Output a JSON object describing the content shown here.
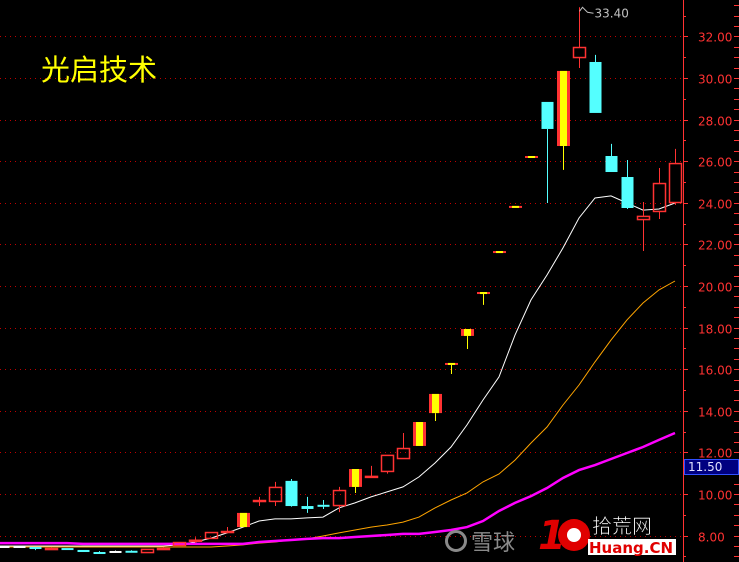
{
  "header": {
    "stock_name": "光启技术"
  },
  "current_price_marker": "11.50",
  "high_annotation": "33.40",
  "watermarks": {
    "xueqiu": "雪球",
    "site_cn": "拾荒网",
    "site_en": "Huang.CN",
    "site_num": "10"
  },
  "colors": {
    "up": "#ff3232",
    "down": "#54ffff",
    "limit_up_fill": "#ffff00",
    "ma_short": "#ffffff",
    "ma_mid": "#ffa500",
    "ma_long": "#ff00ff",
    "grid": "#c00000",
    "axis": "#ff3232"
  },
  "chart_data": {
    "type": "candlestick",
    "title": "光启技术",
    "ylim": [
      6.73,
      33.75
    ],
    "y_scale": "linear",
    "grid": true,
    "y_axis_position": "right",
    "y_ticks": [
      "32.00",
      "30.00",
      "28.00",
      "26.00",
      "24.00",
      "22.00",
      "20.00",
      "18.00",
      "16.00",
      "14.00",
      "12.00",
      "10.00",
      "8.00"
    ],
    "candles": [
      {
        "o": 7.5,
        "h": 7.5,
        "l": 7.5,
        "c": 7.5,
        "kind": "flat"
      },
      {
        "o": 7.5,
        "h": 7.52,
        "l": 7.48,
        "c": 7.5,
        "kind": "flat"
      },
      {
        "o": 7.45,
        "h": 7.45,
        "l": 7.3,
        "c": 7.4,
        "kind": "down"
      },
      {
        "o": 7.4,
        "h": 7.45,
        "l": 7.35,
        "c": 7.4,
        "kind": "up"
      },
      {
        "o": 7.4,
        "h": 7.4,
        "l": 7.31,
        "c": 7.31,
        "kind": "down"
      },
      {
        "o": 7.31,
        "h": 7.31,
        "l": 7.21,
        "c": 7.21,
        "kind": "down"
      },
      {
        "o": 7.21,
        "h": 7.25,
        "l": 7.19,
        "c": 7.19,
        "kind": "down"
      },
      {
        "o": 7.26,
        "h": 7.28,
        "l": 7.24,
        "c": 7.26,
        "kind": "flat"
      },
      {
        "o": 7.27,
        "h": 7.3,
        "l": 7.2,
        "c": 7.24,
        "kind": "down"
      },
      {
        "o": 7.16,
        "h": 7.36,
        "l": 7.16,
        "c": 7.36,
        "kind": "up"
      },
      {
        "o": 7.38,
        "h": 7.45,
        "l": 7.35,
        "c": 7.4,
        "kind": "up"
      },
      {
        "o": 7.5,
        "h": 7.69,
        "l": 7.5,
        "c": 7.69,
        "kind": "up"
      },
      {
        "o": 7.78,
        "h": 7.92,
        "l": 7.65,
        "c": 7.8,
        "kind": "up"
      },
      {
        "o": 7.84,
        "h": 8.17,
        "l": 7.84,
        "c": 8.17,
        "kind": "up"
      },
      {
        "o": 8.2,
        "h": 8.41,
        "l": 8.2,
        "c": 8.22,
        "kind": "up"
      },
      {
        "o": 8.41,
        "h": 9.09,
        "l": 8.41,
        "c": 9.09,
        "kind": "limit"
      },
      {
        "o": 9.62,
        "h": 9.86,
        "l": 9.42,
        "c": 9.71,
        "kind": "up"
      },
      {
        "o": 9.62,
        "h": 10.58,
        "l": 9.42,
        "c": 10.34,
        "kind": "up"
      },
      {
        "o": 10.63,
        "h": 10.72,
        "l": 9.39,
        "c": 9.42,
        "kind": "down"
      },
      {
        "o": 9.42,
        "h": 9.86,
        "l": 9.09,
        "c": 9.28,
        "kind": "down"
      },
      {
        "o": 9.48,
        "h": 9.71,
        "l": 9.28,
        "c": 9.46,
        "kind": "down"
      },
      {
        "o": 9.42,
        "h": 10.34,
        "l": 9.13,
        "c": 10.19,
        "kind": "up"
      },
      {
        "o": 10.34,
        "h": 11.2,
        "l": 10.05,
        "c": 11.2,
        "kind": "limit"
      },
      {
        "o": 10.85,
        "h": 11.35,
        "l": 10.85,
        "c": 10.87,
        "kind": "up"
      },
      {
        "o": 11.06,
        "h": 11.88,
        "l": 10.98,
        "c": 11.88,
        "kind": "up"
      },
      {
        "o": 11.68,
        "h": 12.93,
        "l": 11.68,
        "c": 12.21,
        "kind": "up"
      },
      {
        "o": 12.31,
        "h": 13.46,
        "l": 12.31,
        "c": 13.46,
        "kind": "limit"
      },
      {
        "o": 13.89,
        "h": 14.81,
        "l": 13.51,
        "c": 14.81,
        "kind": "limit"
      },
      {
        "o": 16.3,
        "h": 16.3,
        "l": 15.77,
        "c": 16.3,
        "kind": "limit"
      },
      {
        "o": 17.6,
        "h": 17.93,
        "l": 16.97,
        "c": 17.93,
        "kind": "limit"
      },
      {
        "o": 19.71,
        "h": 19.71,
        "l": 19.09,
        "c": 19.71,
        "kind": "limit"
      },
      {
        "o": 21.68,
        "h": 21.68,
        "l": 21.68,
        "c": 21.68,
        "kind": "limit"
      },
      {
        "o": 23.85,
        "h": 23.85,
        "l": 23.85,
        "c": 23.85,
        "kind": "limit"
      },
      {
        "o": 26.25,
        "h": 26.25,
        "l": 26.25,
        "c": 26.25,
        "kind": "limit"
      },
      {
        "o": 28.85,
        "h": 28.85,
        "l": 23.99,
        "c": 27.55,
        "kind": "down"
      },
      {
        "o": 26.73,
        "h": 30.34,
        "l": 25.58,
        "c": 30.34,
        "kind": "limit"
      },
      {
        "o": 30.96,
        "h": 33.4,
        "l": 30.48,
        "c": 31.49,
        "kind": "up"
      },
      {
        "o": 30.77,
        "h": 31.11,
        "l": 28.32,
        "c": 28.32,
        "kind": "down"
      },
      {
        "o": 26.25,
        "h": 26.83,
        "l": 25.48,
        "c": 25.48,
        "kind": "down"
      },
      {
        "o": 25.24,
        "h": 26.06,
        "l": 23.7,
        "c": 23.75,
        "kind": "down"
      },
      {
        "o": 23.17,
        "h": 24.04,
        "l": 21.68,
        "c": 23.37,
        "kind": "up"
      },
      {
        "o": 23.56,
        "h": 25.67,
        "l": 23.22,
        "c": 24.95,
        "kind": "up"
      },
      {
        "o": 23.99,
        "h": 26.59,
        "l": 23.9,
        "c": 25.91,
        "kind": "up"
      }
    ],
    "moving_averages": [
      {
        "color": "#ffffff",
        "values": [
          7.5,
          7.5,
          7.5,
          7.5,
          7.5,
          7.5,
          7.5,
          7.5,
          7.5,
          7.5,
          7.5,
          7.55,
          7.69,
          7.88,
          8.13,
          8.41,
          8.7,
          8.8,
          8.8,
          8.85,
          8.89,
          9.33,
          9.57,
          9.86,
          10.1,
          10.34,
          10.82,
          11.49,
          12.26,
          13.32,
          14.52,
          15.63,
          17.64,
          19.33,
          20.53,
          21.83,
          23.27,
          24.23,
          24.33,
          23.99,
          23.65,
          23.7,
          23.99
        ]
      },
      {
        "color": "#ffa500",
        "values": [
          7.45,
          7.45,
          7.45,
          7.45,
          7.45,
          7.45,
          7.45,
          7.45,
          7.45,
          7.45,
          7.45,
          7.45,
          7.45,
          7.45,
          7.5,
          7.55,
          7.64,
          7.69,
          7.79,
          7.84,
          7.98,
          8.13,
          8.27,
          8.41,
          8.51,
          8.65,
          8.89,
          9.33,
          9.71,
          10.05,
          10.58,
          10.96,
          11.63,
          12.45,
          13.22,
          14.28,
          15.24,
          16.35,
          17.4,
          18.37,
          19.18,
          19.81,
          20.24
        ]
      },
      {
        "color": "#ff00ff",
        "values": [
          7.64,
          7.64,
          7.64,
          7.64,
          7.64,
          7.6,
          7.6,
          7.6,
          7.6,
          7.6,
          7.6,
          7.6,
          7.6,
          7.6,
          7.6,
          7.6,
          7.69,
          7.74,
          7.79,
          7.84,
          7.88,
          7.88,
          7.93,
          7.98,
          8.03,
          8.08,
          8.08,
          8.17,
          8.27,
          8.41,
          8.7,
          9.18,
          9.57,
          9.9,
          10.29,
          10.77,
          11.15,
          11.39,
          11.68,
          11.97,
          12.26,
          12.6,
          12.93
        ]
      }
    ]
  }
}
